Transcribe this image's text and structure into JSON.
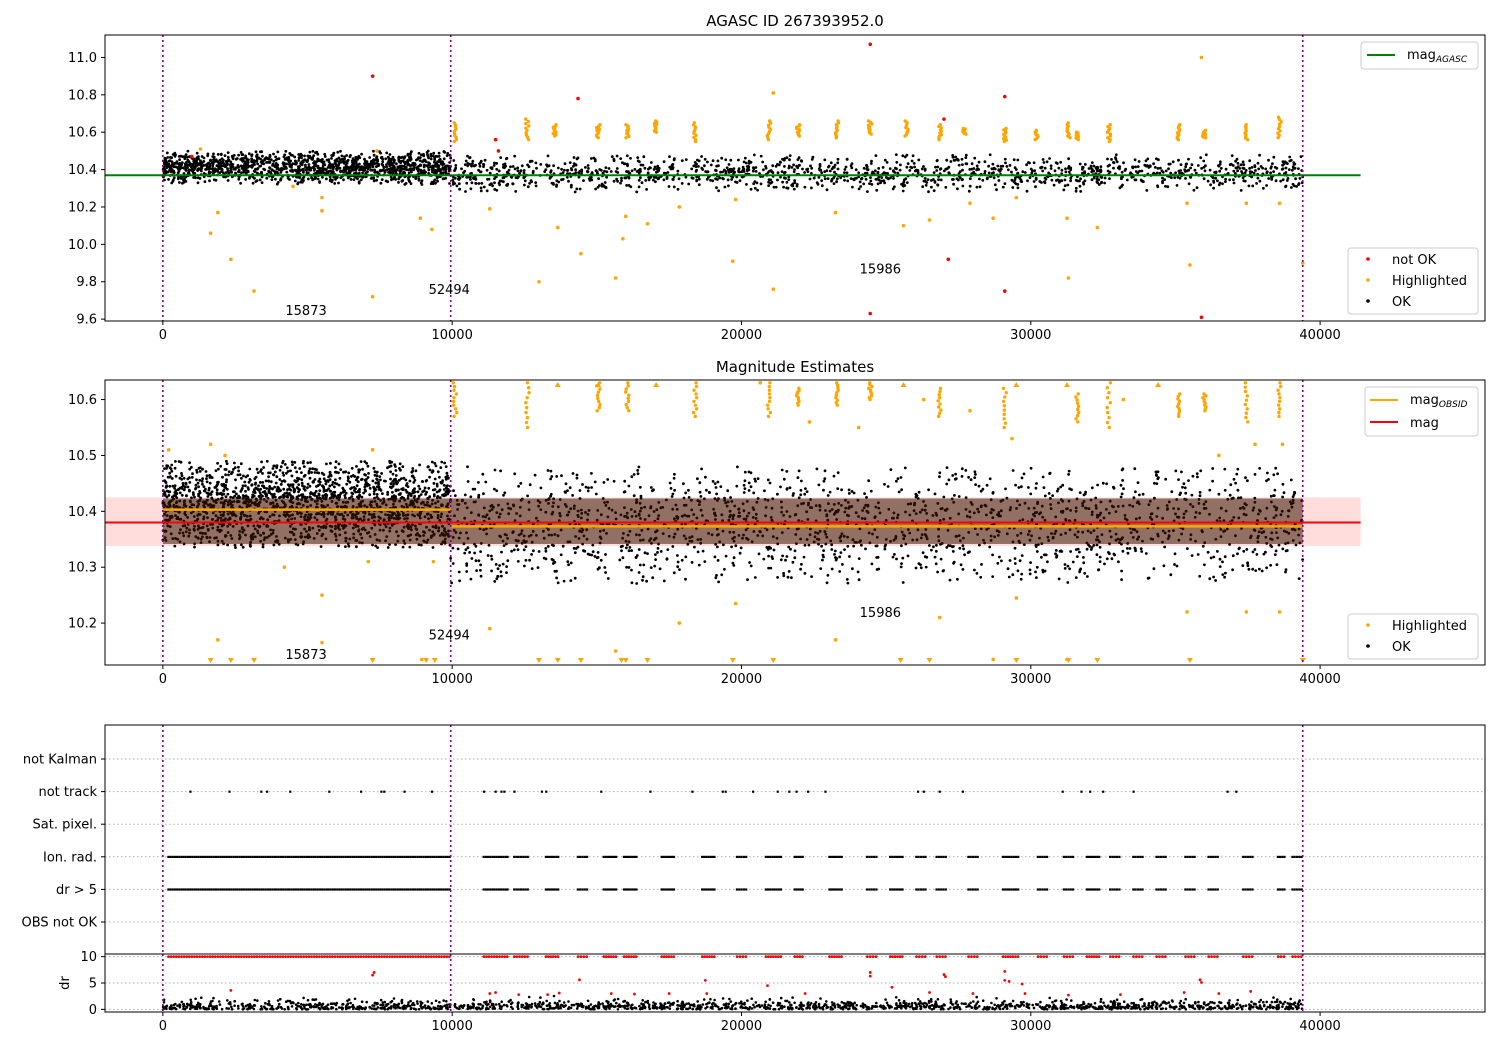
{
  "chart_data": [
    {
      "id": "top",
      "type": "scatter",
      "title": "AGASC ID 267393952.0",
      "xlim": [
        -2000,
        45700
      ],
      "ylim": [
        9.59,
        11.12
      ],
      "xticks": [
        "0",
        "10000",
        "20000",
        "30000",
        "40000"
      ],
      "xtick_values": [
        0,
        10000,
        20000,
        30000,
        40000
      ],
      "yticks": [
        "9.6",
        "9.8",
        "10.0",
        "10.2",
        "10.4",
        "10.6",
        "10.8",
        "11.0"
      ],
      "ytick_values": [
        9.6,
        9.8,
        10.0,
        10.2,
        10.4,
        10.6,
        10.8,
        11.0
      ],
      "obs_boundaries": [
        0,
        9950,
        39400
      ],
      "obs_labels": [
        {
          "text": "15873",
          "x": 4950,
          "y": 9.65
        },
        {
          "text": "52494",
          "x": 9900,
          "y": 9.76
        },
        {
          "text": "15986",
          "x": 24800,
          "y": 9.87
        }
      ],
      "mag_agasc": {
        "value": 10.37,
        "x": [
          -2000,
          41400
        ],
        "color": "#008000"
      },
      "ok_band": [
        {
          "x": [
            0,
            9950
          ],
          "lo": 10.32,
          "hi": 10.5
        },
        {
          "x": [
            9950,
            39400
          ],
          "lo": 10.28,
          "hi": 10.48
        }
      ],
      "not_ok": [
        [
          7250,
          10.9
        ],
        [
          14350,
          10.78
        ],
        [
          11500,
          10.56
        ],
        [
          24450,
          11.07
        ],
        [
          27000,
          10.67
        ],
        [
          29100,
          10.79
        ],
        [
          27150,
          9.92
        ],
        [
          29100,
          9.75
        ],
        [
          24450,
          9.63
        ],
        [
          35900,
          9.61
        ],
        [
          11600,
          10.5
        ],
        [
          1000,
          10.47
        ]
      ],
      "highlighted": [
        [
          1650,
          10.06
        ],
        [
          1900,
          10.17
        ],
        [
          2350,
          9.92
        ],
        [
          3150,
          9.75
        ],
        [
          5500,
          10.25
        ],
        [
          5500,
          10.18
        ],
        [
          7250,
          9.72
        ],
        [
          8900,
          10.14
        ],
        [
          9300,
          10.08
        ],
        [
          11300,
          10.19
        ],
        [
          13000,
          9.8
        ],
        [
          13650,
          10.09
        ],
        [
          14450,
          9.95
        ],
        [
          15650,
          9.82
        ],
        [
          15900,
          10.03
        ],
        [
          16000,
          10.15
        ],
        [
          16750,
          10.11
        ],
        [
          17850,
          10.2
        ],
        [
          19800,
          10.24
        ],
        [
          19700,
          9.91
        ],
        [
          21100,
          9.76
        ],
        [
          21100,
          10.81
        ],
        [
          23250,
          10.17
        ],
        [
          25600,
          10.1
        ],
        [
          26500,
          10.13
        ],
        [
          27900,
          10.22
        ],
        [
          28700,
          10.14
        ],
        [
          29500,
          10.25
        ],
        [
          31300,
          9.82
        ],
        [
          31250,
          10.14
        ],
        [
          32300,
          10.09
        ],
        [
          35400,
          10.22
        ],
        [
          35500,
          9.89
        ],
        [
          35900,
          11.0
        ],
        [
          37450,
          10.22
        ],
        [
          38600,
          10.22
        ],
        [
          39400,
          9.9
        ],
        [
          1300,
          10.51
        ],
        [
          7400,
          10.5
        ],
        [
          4500,
          10.31
        ]
      ],
      "highlighted_groups": [
        {
          "x": 10100,
          "lo": 10.55,
          "hi": 10.65
        },
        {
          "x": 12600,
          "lo": 10.56,
          "hi": 10.67
        },
        {
          "x": 13550,
          "lo": 10.58,
          "hi": 10.64
        },
        {
          "x": 15050,
          "lo": 10.57,
          "hi": 10.64
        },
        {
          "x": 16050,
          "lo": 10.57,
          "hi": 10.64
        },
        {
          "x": 17050,
          "lo": 10.6,
          "hi": 10.66
        },
        {
          "x": 18400,
          "lo": 10.55,
          "hi": 10.65
        },
        {
          "x": 20950,
          "lo": 10.56,
          "hi": 10.66
        },
        {
          "x": 21950,
          "lo": 10.58,
          "hi": 10.64
        },
        {
          "x": 23300,
          "lo": 10.57,
          "hi": 10.66
        },
        {
          "x": 24450,
          "lo": 10.59,
          "hi": 10.66
        },
        {
          "x": 25700,
          "lo": 10.58,
          "hi": 10.66
        },
        {
          "x": 26850,
          "lo": 10.56,
          "hi": 10.64
        },
        {
          "x": 27700,
          "lo": 10.59,
          "hi": 10.62
        },
        {
          "x": 29100,
          "lo": 10.55,
          "hi": 10.62
        },
        {
          "x": 30200,
          "lo": 10.56,
          "hi": 10.61
        },
        {
          "x": 31300,
          "lo": 10.57,
          "hi": 10.65
        },
        {
          "x": 31600,
          "lo": 10.56,
          "hi": 10.6
        },
        {
          "x": 32700,
          "lo": 10.55,
          "hi": 10.64
        },
        {
          "x": 35100,
          "lo": 10.56,
          "hi": 10.64
        },
        {
          "x": 36000,
          "lo": 10.57,
          "hi": 10.61
        },
        {
          "x": 37450,
          "lo": 10.56,
          "hi": 10.64
        },
        {
          "x": 38600,
          "lo": 10.57,
          "hi": 10.68
        }
      ],
      "legend_top": [
        {
          "label": "mag",
          "sub": "AGASC",
          "color": "#008000"
        }
      ],
      "legend_bottom": [
        {
          "label": "not OK",
          "color": "#ff0000"
        },
        {
          "label": "Highlighted",
          "color": "#ffa500"
        },
        {
          "label": "OK",
          "color": "#000000"
        }
      ]
    },
    {
      "id": "mid",
      "type": "scatter",
      "title": "Magnitude Estimates",
      "xlim": [
        -2000,
        45700
      ],
      "ylim": [
        10.125,
        10.635
      ],
      "xticks": [
        "0",
        "10000",
        "20000",
        "30000",
        "40000"
      ],
      "xtick_values": [
        0,
        10000,
        20000,
        30000,
        40000
      ],
      "yticks": [
        "10.2",
        "10.3",
        "10.4",
        "10.5",
        "10.6"
      ],
      "ytick_values": [
        10.2,
        10.3,
        10.4,
        10.5,
        10.6
      ],
      "obs_boundaries": [
        0,
        9950,
        39400
      ],
      "obs_labels": [
        {
          "text": "15873",
          "x": 4950,
          "y": 10.145
        },
        {
          "text": "52494",
          "x": 9900,
          "y": 10.18
        },
        {
          "text": "15986",
          "x": 24800,
          "y": 10.22
        }
      ],
      "mag": {
        "value": 10.38,
        "band": [
          10.338,
          10.425
        ],
        "x": [
          -2000,
          41400
        ],
        "color": "#ff0000"
      },
      "mag_obsid": [
        {
          "x": [
            0,
            9950
          ],
          "value": 10.403
        },
        {
          "x": [
            9950,
            39400
          ],
          "value": 10.373
        }
      ],
      "ok_band": [
        {
          "x": [
            0,
            9950
          ],
          "lo": 10.335,
          "hi": 10.49
        },
        {
          "x": [
            9950,
            39400
          ],
          "lo": 10.27,
          "hi": 10.48
        }
      ],
      "highlighted": [
        [
          1650,
          10.52
        ],
        [
          200,
          10.51
        ],
        [
          2150,
          10.5
        ],
        [
          7250,
          10.51
        ],
        [
          4200,
          10.3
        ],
        [
          5500,
          10.25
        ],
        [
          7100,
          10.31
        ],
        [
          9350,
          10.31
        ],
        [
          1900,
          10.17
        ],
        [
          5500,
          10.165
        ],
        [
          8950,
          10.135
        ],
        [
          11300,
          10.19
        ],
        [
          15650,
          10.15
        ],
        [
          17850,
          10.2
        ],
        [
          19800,
          10.235
        ],
        [
          23250,
          10.17
        ],
        [
          26850,
          10.21
        ],
        [
          28700,
          10.135
        ],
        [
          29500,
          10.245
        ],
        [
          31250,
          10.135
        ],
        [
          35400,
          10.22
        ],
        [
          37450,
          10.22
        ],
        [
          38600,
          10.22
        ],
        [
          20650,
          10.63
        ],
        [
          22350,
          10.56
        ],
        [
          24050,
          10.55
        ],
        [
          26300,
          10.6
        ],
        [
          27900,
          10.58
        ],
        [
          33200,
          10.6
        ],
        [
          37750,
          10.52
        ],
        [
          38700,
          10.52
        ],
        [
          36500,
          10.5
        ],
        [
          29350,
          10.53
        ]
      ],
      "highlighted_groups": [
        {
          "x": 10100,
          "lo": 10.57,
          "hi": 10.63
        },
        {
          "x": 12600,
          "lo": 10.55,
          "hi": 10.63
        },
        {
          "x": 15050,
          "lo": 10.58,
          "hi": 10.63
        },
        {
          "x": 16050,
          "lo": 10.58,
          "hi": 10.63
        },
        {
          "x": 18400,
          "lo": 10.57,
          "hi": 10.63
        },
        {
          "x": 20950,
          "lo": 10.57,
          "hi": 10.63
        },
        {
          "x": 21950,
          "lo": 10.59,
          "hi": 10.62
        },
        {
          "x": 23300,
          "lo": 10.59,
          "hi": 10.63
        },
        {
          "x": 24450,
          "lo": 10.6,
          "hi": 10.63
        },
        {
          "x": 26850,
          "lo": 10.57,
          "hi": 10.62
        },
        {
          "x": 29100,
          "lo": 10.55,
          "hi": 10.62
        },
        {
          "x": 31600,
          "lo": 10.56,
          "hi": 10.61
        },
        {
          "x": 32700,
          "lo": 10.55,
          "hi": 10.63
        },
        {
          "x": 35100,
          "lo": 10.57,
          "hi": 10.61
        },
        {
          "x": 36000,
          "lo": 10.58,
          "hi": 10.61
        },
        {
          "x": 37450,
          "lo": 10.56,
          "hi": 10.63
        },
        {
          "x": 38600,
          "lo": 10.57,
          "hi": 10.63
        }
      ],
      "clipped_low": [
        1650,
        2350,
        3150,
        7250,
        9100,
        9400,
        13000,
        13650,
        14450,
        15850,
        16000,
        16750,
        19700,
        21100,
        25500,
        26500,
        29500,
        31300,
        32300,
        35500,
        39400
      ],
      "clipped_high": [
        13650,
        15050,
        17050,
        25600,
        29500,
        31250,
        34400
      ],
      "legend_top": [
        {
          "label": "mag",
          "sub": "OBSID",
          "color": "#ffa500"
        },
        {
          "label": "mag",
          "sub": "",
          "color": "#ff0000"
        }
      ],
      "legend_bottom": [
        {
          "label": "Highlighted",
          "color": "#ffa500"
        },
        {
          "label": "OK",
          "color": "#000000"
        }
      ]
    },
    {
      "id": "flags",
      "type": "scatter",
      "xlim": [
        -2000,
        45700
      ],
      "rows": [
        "not Kalman",
        "not track",
        "Sat. pixel.",
        "Ion. rad.",
        "dr > 5",
        "OBS not OK"
      ],
      "obs_boundaries": [
        0,
        9950,
        39400
      ],
      "not_track_x": [
        950,
        2300,
        3400,
        3600,
        4400,
        5750,
        6850,
        7550,
        7650,
        8350,
        9300,
        11100,
        11500,
        11700,
        11800,
        12150,
        13100,
        13250,
        15150,
        16850,
        18300,
        19350,
        19450,
        20400,
        21250,
        21650,
        21900,
        22300,
        22900,
        26100,
        26300,
        26850,
        27650,
        31100,
        31750,
        32050,
        32500,
        33550,
        36800,
        37100
      ],
      "dense_segments": [
        [
          150,
          9950
        ],
        [
          11050,
          11950
        ],
        [
          12100,
          12650
        ],
        [
          13200,
          13700
        ],
        [
          14300,
          14700
        ],
        [
          15200,
          15700
        ],
        [
          15900,
          16400
        ],
        [
          17200,
          17700
        ],
        [
          18600,
          19100
        ],
        [
          19800,
          20200
        ],
        [
          20800,
          21400
        ],
        [
          21800,
          22150
        ],
        [
          23000,
          23500
        ],
        [
          24300,
          24700
        ],
        [
          25100,
          25600
        ],
        [
          26000,
          26400
        ],
        [
          26700,
          27100
        ],
        [
          27800,
          28200
        ],
        [
          29000,
          29600
        ],
        [
          30200,
          30600
        ],
        [
          31100,
          31500
        ],
        [
          31900,
          32400
        ],
        [
          32700,
          33100
        ],
        [
          33500,
          33900
        ],
        [
          34300,
          34700
        ],
        [
          35300,
          35700
        ],
        [
          36100,
          36500
        ],
        [
          37300,
          37700
        ],
        [
          38500,
          38800
        ],
        [
          39000,
          39400
        ]
      ]
    },
    {
      "id": "dr",
      "type": "scatter",
      "ylabel": "dr",
      "xlim": [
        -2000,
        45700
      ],
      "ylim": [
        -0.5,
        10.5
      ],
      "xticks": [
        "0",
        "10000",
        "20000",
        "30000",
        "40000"
      ],
      "xtick_values": [
        0,
        10000,
        20000,
        30000,
        40000
      ],
      "yticks": [
        "0",
        "5",
        "10"
      ],
      "ytick_values": [
        0,
        5,
        10
      ],
      "obs_boundaries": [
        0,
        9950,
        39400
      ],
      "saturated_value": 10,
      "red_points": [
        [
          7250,
          6.5
        ],
        [
          7300,
          7.0
        ],
        [
          14400,
          5.6
        ],
        [
          18750,
          5.5
        ],
        [
          20900,
          4.5
        ],
        [
          24450,
          7.0
        ],
        [
          24450,
          6.3
        ],
        [
          27000,
          6.6
        ],
        [
          27050,
          6.2
        ],
        [
          29100,
          7.2
        ],
        [
          29250,
          5.3
        ],
        [
          29100,
          5.5
        ],
        [
          29700,
          4.8
        ],
        [
          35850,
          5.6
        ],
        [
          35900,
          5.1
        ],
        [
          2350,
          3.6
        ],
        [
          11300,
          3.0
        ],
        [
          11500,
          3.2
        ],
        [
          12300,
          2.8
        ],
        [
          13300,
          2.8
        ],
        [
          13700,
          3.1
        ],
        [
          15500,
          3.0
        ],
        [
          16300,
          2.9
        ],
        [
          17500,
          3.0
        ],
        [
          18800,
          3.0
        ],
        [
          22200,
          3.0
        ],
        [
          25200,
          4.2
        ],
        [
          26500,
          3.2
        ],
        [
          28000,
          3.0
        ],
        [
          29800,
          3.0
        ],
        [
          31300,
          2.7
        ],
        [
          33100,
          2.8
        ],
        [
          35300,
          3.2
        ],
        [
          36500,
          3.0
        ],
        [
          37600,
          3.4
        ]
      ]
    }
  ]
}
